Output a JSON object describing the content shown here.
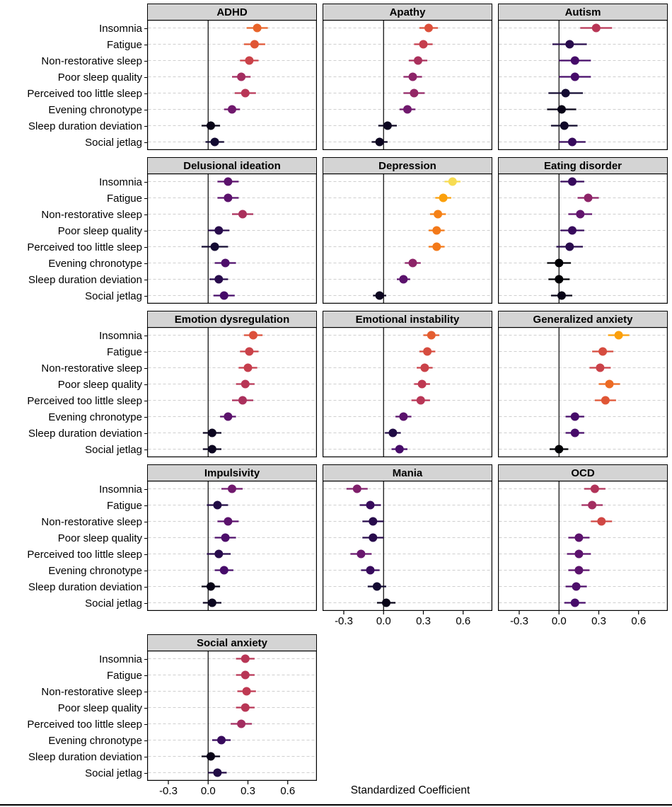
{
  "figure": {
    "strip_bg": "#d4d4d4",
    "grid_color": "#cfcfcf",
    "border_color": "#000000",
    "zero_line_color": "#000000"
  },
  "chart_data": {
    "type": "scatter",
    "subtype": "faceted forest plot: point estimate with horizontal 95% CI error bars, one facet per outcome",
    "xlabel": "Standardized Coefficient",
    "x_ticks": [
      -0.3,
      0.0,
      0.3,
      0.6
    ],
    "x_tick_labels": [
      "-0.3",
      "0.0",
      "0.3",
      "0.6"
    ],
    "x_domain": [
      -0.46,
      0.82
    ],
    "categories": [
      "Insomnia",
      "Fatigue",
      "Non-restorative sleep",
      "Poor sleep quality",
      "Perceived too little sleep",
      "Evening chronotype",
      "Sleep duration deviation",
      "Social jetlag"
    ],
    "color_encoding": "point/CI color = |coefficient| mapped onto inferno palette (dark = near 0, yellow = large)",
    "palette": {
      "name": "inferno",
      "stops": [
        "#000004",
        "#160b39",
        "#420a68",
        "#6a176e",
        "#932667",
        "#bc3754",
        "#dd513a",
        "#f37819",
        "#fca50a",
        "#f6d746",
        "#fcffa4"
      ],
      "abs_max": 0.57
    },
    "panels": [
      {
        "title": "ADHD",
        "est": [
          0.37,
          0.35,
          0.31,
          0.25,
          0.28,
          0.18,
          0.02,
          0.05
        ],
        "ci": [
          0.08,
          0.08,
          0.07,
          0.07,
          0.08,
          0.06,
          0.07,
          0.07
        ]
      },
      {
        "title": "Apathy",
        "est": [
          0.34,
          0.3,
          0.26,
          0.22,
          0.23,
          0.18,
          0.03,
          -0.03
        ],
        "ci": [
          0.07,
          0.07,
          0.07,
          0.07,
          0.08,
          0.06,
          0.07,
          0.06
        ]
      },
      {
        "title": "Autism",
        "est": [
          0.28,
          0.08,
          0.12,
          0.12,
          0.05,
          0.02,
          0.04,
          0.1
        ],
        "ci": [
          0.12,
          0.13,
          0.12,
          0.12,
          0.13,
          0.11,
          0.1,
          0.1
        ]
      },
      {
        "title": "Delusional ideation",
        "est": [
          0.15,
          0.15,
          0.26,
          0.08,
          0.05,
          0.13,
          0.08,
          0.12
        ],
        "ci": [
          0.08,
          0.08,
          0.08,
          0.08,
          0.1,
          0.08,
          0.07,
          0.08
        ]
      },
      {
        "title": "Depression",
        "est": [
          0.52,
          0.45,
          0.41,
          0.4,
          0.4,
          0.22,
          0.15,
          -0.03
        ],
        "ci": [
          0.06,
          0.06,
          0.06,
          0.06,
          0.06,
          0.06,
          0.05,
          0.05
        ]
      },
      {
        "title": "Eating disorder",
        "est": [
          0.1,
          0.22,
          0.16,
          0.1,
          0.08,
          0.0,
          0.0,
          0.02
        ],
        "ci": [
          0.09,
          0.08,
          0.09,
          0.09,
          0.1,
          0.09,
          0.08,
          0.08
        ]
      },
      {
        "title": "Emotion dysregulation",
        "est": [
          0.34,
          0.31,
          0.3,
          0.28,
          0.26,
          0.15,
          0.03,
          0.03
        ],
        "ci": [
          0.07,
          0.07,
          0.07,
          0.07,
          0.08,
          0.06,
          0.07,
          0.07
        ]
      },
      {
        "title": "Emotional instability",
        "est": [
          0.36,
          0.33,
          0.31,
          0.29,
          0.28,
          0.15,
          0.07,
          0.12
        ],
        "ci": [
          0.06,
          0.06,
          0.06,
          0.06,
          0.07,
          0.06,
          0.06,
          0.06
        ]
      },
      {
        "title": "Generalized anxiety",
        "est": [
          0.45,
          0.33,
          0.31,
          0.38,
          0.35,
          0.12,
          0.12,
          0.0
        ],
        "ci": [
          0.08,
          0.08,
          0.08,
          0.08,
          0.08,
          0.07,
          0.07,
          0.07
        ]
      },
      {
        "title": "Impulsivity",
        "est": [
          0.18,
          0.07,
          0.15,
          0.13,
          0.08,
          0.12,
          0.02,
          0.03
        ],
        "ci": [
          0.08,
          0.08,
          0.08,
          0.08,
          0.09,
          0.07,
          0.07,
          0.07
        ]
      },
      {
        "title": "Mania",
        "est": [
          -0.2,
          -0.1,
          -0.08,
          -0.08,
          -0.17,
          -0.1,
          -0.05,
          0.02
        ],
        "ci": [
          0.08,
          0.08,
          0.08,
          0.08,
          0.08,
          0.07,
          0.07,
          0.07
        ]
      },
      {
        "title": "OCD",
        "est": [
          0.27,
          0.25,
          0.32,
          0.15,
          0.15,
          0.15,
          0.13,
          0.12
        ],
        "ci": [
          0.08,
          0.08,
          0.08,
          0.08,
          0.09,
          0.08,
          0.08,
          0.08
        ]
      },
      {
        "title": "Social anxiety",
        "est": [
          0.28,
          0.28,
          0.29,
          0.28,
          0.25,
          0.1,
          0.02,
          0.07
        ],
        "ci": [
          0.07,
          0.07,
          0.07,
          0.07,
          0.08,
          0.07,
          0.07,
          0.07
        ]
      }
    ]
  }
}
